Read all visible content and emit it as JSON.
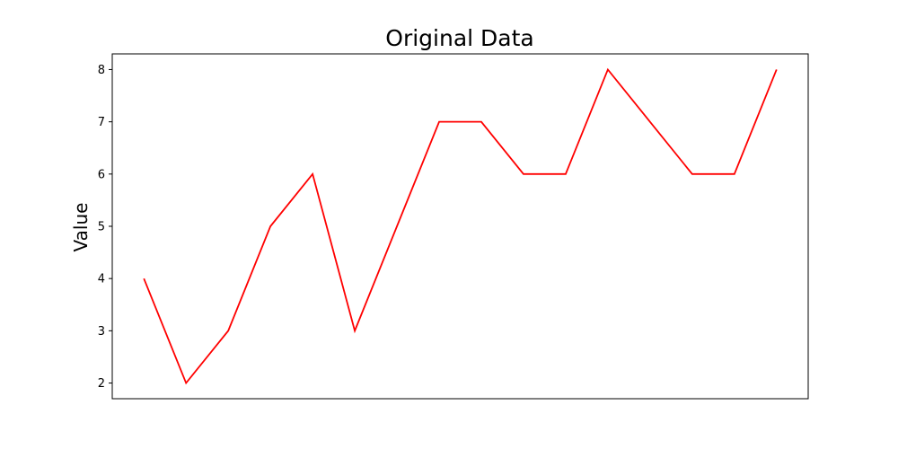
{
  "chart_data": {
    "type": "line",
    "title": "Original Data",
    "xlabel": "",
    "ylabel": "Value",
    "x": [
      0,
      1,
      2,
      3,
      4,
      5,
      6,
      7,
      8,
      9,
      10,
      11,
      12,
      13,
      14,
      15
    ],
    "series": [
      {
        "values": [
          4,
          2,
          3,
          5,
          6,
          3,
          5,
          7,
          7,
          6,
          6,
          8,
          7,
          6,
          6,
          8
        ],
        "color": "#ff0000"
      }
    ],
    "xlim": [
      -0.75,
      15.75
    ],
    "ylim": [
      1.7,
      8.3
    ],
    "yticks": [
      2,
      3,
      4,
      5,
      6,
      7,
      8
    ],
    "xticks_visible": false,
    "grid": false,
    "legend": false
  }
}
